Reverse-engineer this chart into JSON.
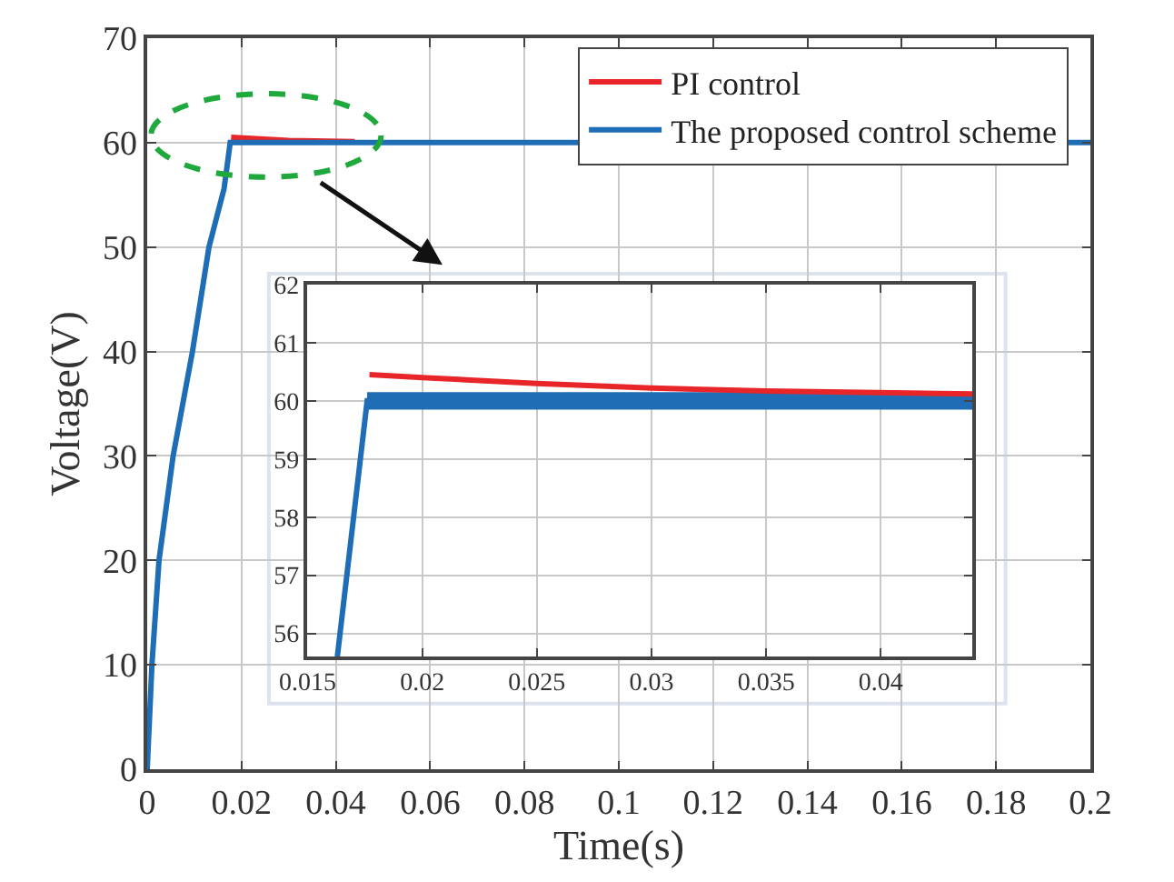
{
  "chart_data": [
    {
      "type": "line",
      "xlabel": "Time(s)",
      "ylabel": "Voltage(V)",
      "xlim": [
        0,
        0.2
      ],
      "xticks": [
        0,
        0.02,
        0.04,
        0.06,
        0.08,
        0.1,
        0.12,
        0.14,
        0.16,
        0.18,
        0.2
      ],
      "ylim": [
        0,
        70
      ],
      "yticks": [
        0,
        10,
        20,
        30,
        40,
        50,
        60,
        70
      ],
      "grid": true,
      "legend": "top right",
      "series": [
        {
          "name": "PI control",
          "color": "#e8262a",
          "x": [
            0.0178,
            0.03,
            0.044
          ],
          "values": [
            60.5,
            60.2,
            60.1
          ]
        },
        {
          "name": "The proposed control scheme",
          "color": "#1f6db5",
          "x": [
            0,
            0.001,
            0.0025,
            0.0055,
            0.0096,
            0.0131,
            0.0163,
            0.0176,
            0.2
          ],
          "values": [
            0,
            10,
            20,
            30,
            40,
            50,
            55.6,
            60,
            60
          ]
        }
      ]
    },
    {
      "type": "line",
      "xlim": [
        0.015,
        0.044
      ],
      "xticks": [
        0.015,
        0.02,
        0.025,
        0.03,
        0.035,
        0.04
      ],
      "ylim": [
        55.6,
        62
      ],
      "yticks": [
        56,
        57,
        58,
        59,
        60,
        61,
        62
      ],
      "grid": true,
      "series": [
        {
          "color": "#1f6db5",
          "x": [
            0.0163,
            0.0176,
            0.02,
            0.03,
            0.044
          ],
          "values": [
            55.6,
            60,
            60,
            60,
            60
          ],
          "lower": [
            null,
            59.85,
            59.85,
            59.85,
            59.85
          ],
          "upper": [
            null,
            60.15,
            60.15,
            60.15,
            60.15
          ]
        },
        {
          "color": "#e8262a",
          "x": [
            0.0177,
            0.02,
            0.025,
            0.03,
            0.035,
            0.044
          ],
          "values": [
            60.45,
            60.4,
            60.3,
            60.22,
            60.17,
            60.12
          ]
        }
      ]
    }
  ]
}
